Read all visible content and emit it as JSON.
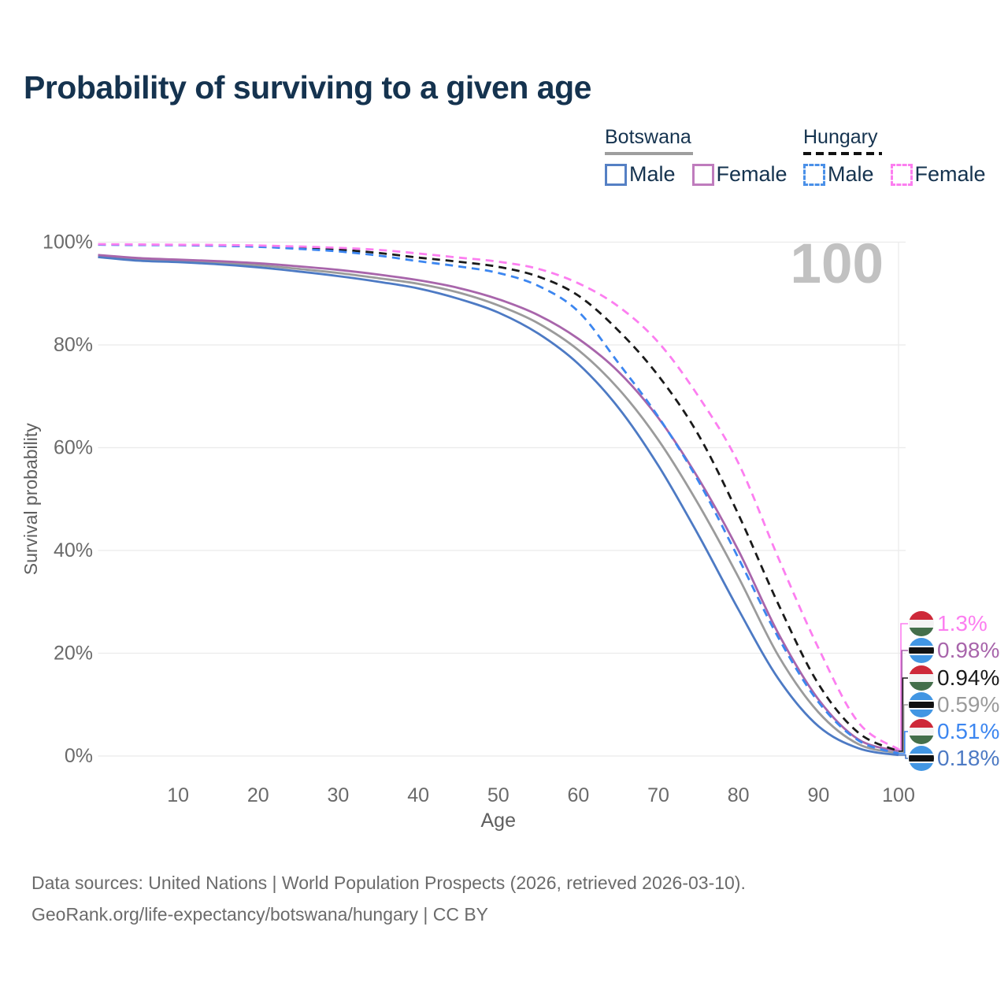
{
  "watermark_age": "100",
  "legend": {
    "groups": [
      {
        "country": "Botswana",
        "line_style": "solid",
        "underline_color": "#9e9e9e",
        "items": [
          {
            "label": "Male",
            "color": "#5580c4",
            "dashed": false
          },
          {
            "label": "Female",
            "color": "#bf7cbd",
            "dashed": false
          }
        ]
      },
      {
        "country": "Hungary",
        "line_style": "dashed",
        "underline_color": "#111111",
        "items": [
          {
            "label": "Male",
            "color": "#4a90e8",
            "dashed": true
          },
          {
            "label": "Female",
            "color": "#fc7ef0",
            "dashed": true
          }
        ]
      }
    ]
  },
  "chart_data": {
    "type": "line",
    "title": "Probability of surviving to a given age",
    "xlabel": "Age",
    "ylabel": "Survival probability",
    "xlim": [
      0,
      100
    ],
    "ylim": [
      0,
      100
    ],
    "grid": "horizontal",
    "legend_position": "top-right",
    "x_ticks": [
      10,
      20,
      30,
      40,
      50,
      60,
      70,
      80,
      90,
      100
    ],
    "y_ticks": [
      {
        "value": 0,
        "label": "0%"
      },
      {
        "value": 20,
        "label": "20%"
      },
      {
        "value": 40,
        "label": "40%"
      },
      {
        "value": 60,
        "label": "60%"
      },
      {
        "value": 80,
        "label": "80%"
      },
      {
        "value": 100,
        "label": "100%"
      }
    ],
    "ages": [
      0,
      5,
      10,
      15,
      20,
      25,
      30,
      35,
      40,
      45,
      50,
      55,
      60,
      65,
      70,
      75,
      80,
      85,
      90,
      95,
      100
    ],
    "series": [
      {
        "id": "bw-both",
        "name": "Botswana Both sexes",
        "country": "Botswana",
        "sex": "Both",
        "flag": "botswana",
        "color": "#9b9b9b",
        "dashed": false,
        "end_label": "0.59%",
        "values": [
          97.3,
          96.6,
          96.3,
          96.0,
          95.5,
          94.8,
          94.0,
          93.0,
          91.9,
          90.2,
          87.7,
          84.2,
          79.0,
          71.5,
          61.5,
          49.0,
          34.8,
          19.5,
          8.5,
          2.3,
          0.59
        ]
      },
      {
        "id": "bw-male",
        "name": "Botswana Male",
        "country": "Botswana",
        "sex": "Male",
        "flag": "botswana",
        "color": "#4d7ac4",
        "dashed": false,
        "end_label": "0.18%",
        "values": [
          97.1,
          96.4,
          96.1,
          95.7,
          95.1,
          94.3,
          93.4,
          92.3,
          91.0,
          89.0,
          86.3,
          82.2,
          76.3,
          67.8,
          56.5,
          43.0,
          28.5,
          15.0,
          5.8,
          1.5,
          0.18
        ]
      },
      {
        "id": "bw-female",
        "name": "Botswana Female",
        "country": "Botswana",
        "sex": "Female",
        "flag": "botswana",
        "color": "#a865ab",
        "dashed": false,
        "end_label": "0.98%",
        "values": [
          97.5,
          96.9,
          96.6,
          96.3,
          95.9,
          95.3,
          94.6,
          93.7,
          92.6,
          91.1,
          88.9,
          85.8,
          81.2,
          74.8,
          65.8,
          54.0,
          40.0,
          23.8,
          11.0,
          3.2,
          0.98
        ]
      },
      {
        "id": "hu-both",
        "name": "Hungary Both sexes",
        "country": "Hungary",
        "sex": "Both",
        "flag": "hungary",
        "color": "#1a1a1a",
        "dashed": true,
        "end_label": "0.94%",
        "values": [
          99.55,
          99.5,
          99.45,
          99.35,
          99.2,
          98.9,
          98.55,
          97.9,
          97.0,
          96.2,
          95.2,
          93.3,
          89.6,
          82.8,
          74.0,
          62.5,
          47.0,
          29.5,
          14.0,
          4.5,
          0.94
        ]
      },
      {
        "id": "hu-male",
        "name": "Hungary Male",
        "country": "Hungary",
        "sex": "Male",
        "flag": "hungary",
        "color": "#3c86f0",
        "dashed": true,
        "end_label": "0.51%",
        "values": [
          99.5,
          99.45,
          99.4,
          99.3,
          99.1,
          98.7,
          98.2,
          97.4,
          96.3,
          95.3,
          94.0,
          91.5,
          86.5,
          76.5,
          66.0,
          53.5,
          38.5,
          23.0,
          10.5,
          3.0,
          0.51
        ]
      },
      {
        "id": "hu-female",
        "name": "Hungary Female",
        "country": "Hungary",
        "sex": "Female",
        "flag": "hungary",
        "color": "#fc7ef0",
        "dashed": true,
        "end_label": "1.3%",
        "values": [
          99.6,
          99.55,
          99.5,
          99.45,
          99.35,
          99.15,
          98.9,
          98.5,
          97.8,
          97.0,
          96.2,
          94.8,
          92.0,
          87.5,
          80.5,
          70.0,
          57.0,
          38.5,
          21.0,
          6.5,
          1.3
        ]
      }
    ],
    "flag_colors": {
      "hungary": {
        "top": "#ce2939",
        "mid": "#f4f4f4",
        "bottom": "#446f4b"
      },
      "botswana": {
        "base": "#4296e3",
        "band": "#111111",
        "band_edge": "#ffffff"
      }
    }
  },
  "footer": {
    "line1": "Data sources: United Nations | World Population Prospects (2026, retrieved 2026-03-10).",
    "line2": "GeoRank.org/life-expectancy/botswana/hungary | CC BY"
  }
}
